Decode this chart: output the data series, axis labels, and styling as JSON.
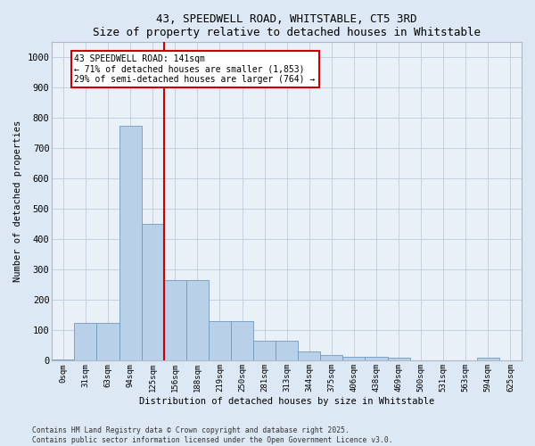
{
  "title1": "43, SPEEDWELL ROAD, WHITSTABLE, CT5 3RD",
  "title2": "Size of property relative to detached houses in Whitstable",
  "xlabel": "Distribution of detached houses by size in Whitstable",
  "ylabel": "Number of detached properties",
  "categories": [
    "0sqm",
    "31sqm",
    "63sqm",
    "94sqm",
    "125sqm",
    "156sqm",
    "188sqm",
    "219sqm",
    "250sqm",
    "281sqm",
    "313sqm",
    "344sqm",
    "375sqm",
    "406sqm",
    "438sqm",
    "469sqm",
    "500sqm",
    "531sqm",
    "563sqm",
    "594sqm",
    "625sqm"
  ],
  "values": [
    5,
    125,
    125,
    775,
    450,
    265,
    265,
    130,
    130,
    65,
    65,
    32,
    18,
    13,
    13,
    10,
    0,
    0,
    0,
    10,
    0
  ],
  "bar_color": "#b8d0e8",
  "bar_edge_color": "#7099c0",
  "vline_x": 4.5,
  "vline_color": "#cc0000",
  "annotation_text": "43 SPEEDWELL ROAD: 141sqm\n← 71% of detached houses are smaller (1,853)\n29% of semi-detached houses are larger (764) →",
  "annotation_box_edgecolor": "#cc0000",
  "ylim": [
    0,
    1050
  ],
  "yticks": [
    0,
    100,
    200,
    300,
    400,
    500,
    600,
    700,
    800,
    900,
    1000
  ],
  "footnote1": "Contains HM Land Registry data © Crown copyright and database right 2025.",
  "footnote2": "Contains public sector information licensed under the Open Government Licence v3.0.",
  "bg_color": "#dce8f4",
  "plot_bg_color": "#eaf0f8"
}
